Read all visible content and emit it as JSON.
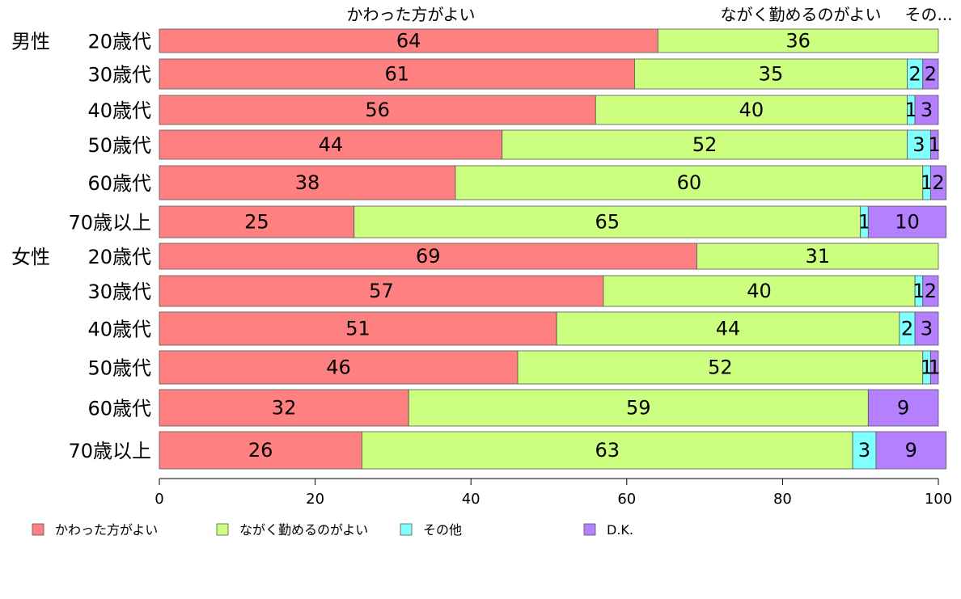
{
  "chart_data": {
    "type": "bar",
    "orientation": "horizontal",
    "stacked": true,
    "colors": [
      "#FF8080",
      "#CCFF80",
      "#80FFFF",
      "#B580FF"
    ],
    "series": [
      {
        "name": "かわった方がよい",
        "values": [
          64,
          61,
          56,
          44,
          38,
          25,
          69,
          57,
          51,
          46,
          32,
          26
        ]
      },
      {
        "name": "ながく勤めるのがよい",
        "values": [
          36,
          35,
          40,
          52,
          60,
          65,
          31,
          40,
          44,
          52,
          59,
          63
        ]
      },
      {
        "name": "その他",
        "values": [
          0,
          2,
          1,
          3,
          1,
          1,
          0,
          1,
          2,
          1,
          0,
          3
        ]
      },
      {
        "name": "D.K.",
        "values": [
          0,
          2,
          3,
          1,
          2,
          10,
          0,
          2,
          3,
          1,
          9,
          9
        ]
      }
    ],
    "rows": [
      {
        "group": "男性",
        "label": "20歳代"
      },
      {
        "group": "",
        "label": "30歳代"
      },
      {
        "group": "",
        "label": "40歳代"
      },
      {
        "group": "",
        "label": "50歳代"
      },
      {
        "group": "",
        "label": "60歳代"
      },
      {
        "group": "",
        "label": "70歳以上"
      },
      {
        "group": "女性",
        "label": "20歳代"
      },
      {
        "group": "",
        "label": "30歳代"
      },
      {
        "group": "",
        "label": "40歳代"
      },
      {
        "group": "",
        "label": "50歳代"
      },
      {
        "group": "",
        "label": "60歳代"
      },
      {
        "group": "",
        "label": "70歳以上"
      }
    ],
    "top_labels": [
      "かわった方がよい",
      "ながく勤めるのがよい",
      "その..."
    ],
    "xlim": [
      0,
      100
    ],
    "x_ticks": [
      0,
      20,
      40,
      60,
      80,
      100
    ],
    "legend": {
      "position": "bottom",
      "entries": [
        "かわった方がよい",
        "ながく勤めるのがよい",
        "その他",
        "D.K."
      ]
    },
    "grid": false
  }
}
